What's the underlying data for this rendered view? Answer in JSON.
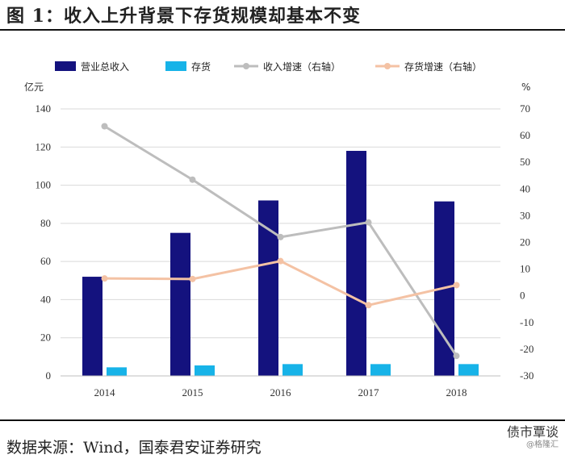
{
  "title": "图 1：收入上升背景下存货规模却基本不变",
  "source": "数据来源：Wind，国泰君安证券研究",
  "watermark": {
    "name": "债市覃谈",
    "sub": "@格隆汇"
  },
  "colors": {
    "revenue": "#14127e",
    "inventory": "#17b3e8",
    "revenue_growth": "#bdbdbd",
    "inventory_growth": "#f4c2a4"
  },
  "chart_data": {
    "type": "bar",
    "categories": [
      "2014",
      "2015",
      "2016",
      "2017",
      "2018"
    ],
    "series": [
      {
        "name": "营业总收入",
        "kind": "bar",
        "axis": "left",
        "values": [
          52,
          75,
          92,
          118,
          91.5
        ]
      },
      {
        "name": "存货",
        "kind": "bar",
        "axis": "left",
        "values": [
          4.5,
          5.5,
          6.2,
          6.2,
          6.2
        ]
      },
      {
        "name": "收入增速（右轴）",
        "kind": "line",
        "axis": "right",
        "values": [
          63.5,
          43.5,
          22,
          27.5,
          -22.5
        ]
      },
      {
        "name": "存货增速（右轴）",
        "kind": "line",
        "axis": "right",
        "values": [
          6.5,
          6.3,
          13,
          -3.5,
          4
        ]
      }
    ],
    "yleft": {
      "label": "亿元",
      "range": [
        0,
        140
      ],
      "ticks": [
        0,
        20,
        40,
        60,
        80,
        100,
        120,
        140
      ]
    },
    "yright": {
      "label": "%",
      "range": [
        -30,
        70
      ],
      "ticks": [
        -30,
        -20,
        -10,
        0,
        10,
        20,
        30,
        40,
        50,
        60,
        70
      ]
    },
    "grid": true,
    "legend": "top"
  }
}
